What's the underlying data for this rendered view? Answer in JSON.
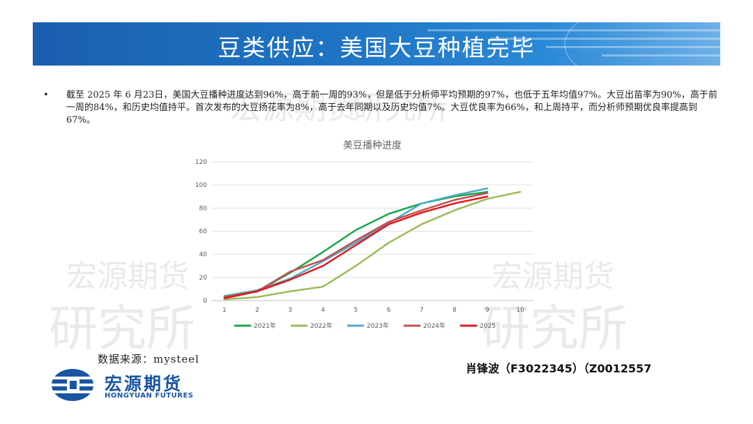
{
  "header": {
    "title": "豆类供应：美国大豆种植完毕"
  },
  "bullet": {
    "symbol": "•",
    "text": "截至 2025 年 6 月23日，美国大豆播种进度达到96%，高于前一周的93%，但是低于分析师平均预期的97%，也低于五年均值97%。大豆出苗率为90%，高于前一周的84%，和历史均值持平。首次发布的大豆扬花率为8%，高于去年同期以及历史均值7%。大豆优良率为66%，和上周持平，而分析师预期优良率提高到67%。"
  },
  "watermark": {
    "line1": "宏源期货",
    "line2": "研究所"
  },
  "chart_data": {
    "type": "line",
    "title": "美豆播种进度",
    "x": [
      1,
      2,
      3,
      4,
      5,
      6,
      7,
      8,
      9,
      10
    ],
    "ylim": [
      0,
      120
    ],
    "yticks": [
      0,
      20,
      40,
      60,
      80,
      100,
      120
    ],
    "grid": true,
    "legend_position": "bottom",
    "series": [
      {
        "name": "2021年",
        "color": "#1aa64a",
        "values": [
          2,
          8,
          24,
          42,
          61,
          75,
          84,
          90,
          94,
          null
        ]
      },
      {
        "name": "2022年",
        "color": "#9bbb59",
        "values": [
          1,
          3,
          8,
          12,
          30,
          50,
          66,
          78,
          88,
          94
        ]
      },
      {
        "name": "2023年",
        "color": "#4bacc6",
        "values": [
          4,
          9,
          19,
          34,
          50,
          67,
          84,
          91,
          97,
          null
        ]
      },
      {
        "name": "2024年",
        "color": "#c0504d",
        "values": [
          3,
          8,
          25,
          35,
          52,
          68,
          78,
          87,
          93,
          null
        ]
      },
      {
        "name": "2025",
        "color": "#e8141c",
        "values": [
          2,
          8,
          18,
          30,
          48,
          66,
          76,
          84,
          90,
          null
        ]
      }
    ]
  },
  "footer": {
    "source": "数据来源：mysteel",
    "author": "肖锋波（F3022345）（Z0012557",
    "logo_cn": "宏源期货",
    "logo_en": "HONGYUAN FUTURES"
  }
}
